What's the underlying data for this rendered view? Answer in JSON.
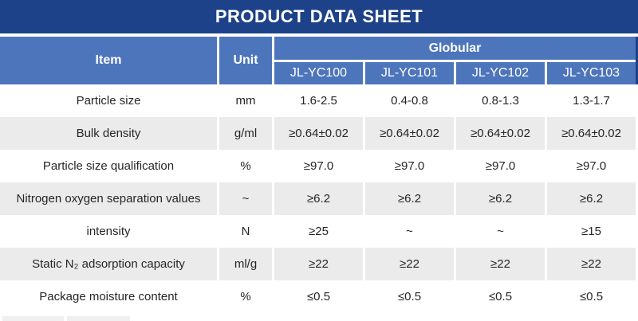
{
  "banner": {
    "title": "PRODUCT DATA SHEET"
  },
  "table": {
    "headers": {
      "item": "Item",
      "unit": "Unit",
      "group": "Globular",
      "models": [
        "JL-YC100",
        "JL-YC101",
        "JL-YC102",
        "JL-YC103"
      ]
    },
    "rows": [
      {
        "item": "Particle size",
        "unit": "mm",
        "values": [
          "1.6-2.5",
          "0.4-0.8",
          "0.8-1.3",
          "1.3-1.7"
        ]
      },
      {
        "item": "Bulk density",
        "unit": "g/ml",
        "values": [
          "≥0.64±0.02",
          "≥0.64±0.02",
          "≥0.64±0.02",
          "≥0.64±0.02"
        ]
      },
      {
        "item": "Particle size qualification",
        "unit": "%",
        "values": [
          "≥97.0",
          "≥97.0",
          "≥97.0",
          "≥97.0"
        ]
      },
      {
        "item": "Nitrogen oxygen separation values",
        "unit": "~",
        "values": [
          "≥6.2",
          "≥6.2",
          "≥6.2",
          "≥6.2"
        ]
      },
      {
        "item": "intensity",
        "unit": "N",
        "values": [
          "≥25",
          "~",
          "~",
          "≥15"
        ]
      },
      {
        "item": "Static N₂ adsorption capacity",
        "unit": "ml/g",
        "values": [
          "≥22",
          "≥22",
          "≥22",
          "≥22"
        ]
      },
      {
        "item": "Package moisture content",
        "unit": "%",
        "values": [
          "≤0.5",
          "≤0.5",
          "≤0.5",
          "≤0.5"
        ]
      }
    ]
  },
  "colors": {
    "banner_navy": "#1d4289",
    "header_blue": "#4d75bb",
    "row_gray": "#ebebeb",
    "text_dark": "#262626"
  }
}
